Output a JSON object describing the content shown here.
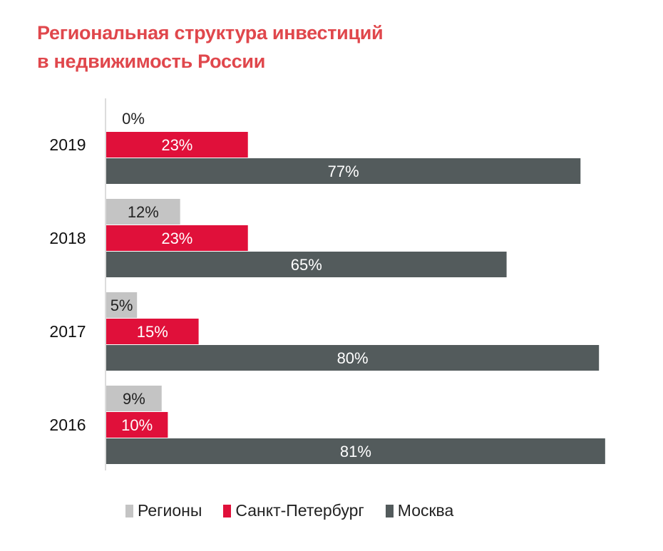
{
  "chart_data": {
    "type": "bar",
    "orientation": "horizontal",
    "title": "Региональная структура инвестиций в недвижимость России",
    "title_lines": [
      "Региональная структура инвестиций",
      "в недвижимость России"
    ],
    "categories": [
      "2019",
      "2018",
      "2017",
      "2016"
    ],
    "series": [
      {
        "name": "Регионы",
        "values": [
          0,
          12,
          5,
          9
        ],
        "labels": [
          "0%",
          "12%",
          "5%",
          "9%"
        ],
        "color": "#c4c4c4"
      },
      {
        "name": "Санкт-Петербург",
        "values": [
          23,
          23,
          15,
          10
        ],
        "labels": [
          "23%",
          "23%",
          "15%",
          "10%"
        ],
        "color": "#e0103a"
      },
      {
        "name": "Москва",
        "values": [
          77,
          65,
          80,
          81
        ],
        "labels": [
          "77%",
          "65%",
          "80%",
          "81%"
        ],
        "color": "#535b5c"
      }
    ],
    "unit": "%",
    "xlim": [
      0,
      82
    ],
    "grid": false,
    "legend_position": "bottom",
    "title_color": "#e0474c"
  }
}
